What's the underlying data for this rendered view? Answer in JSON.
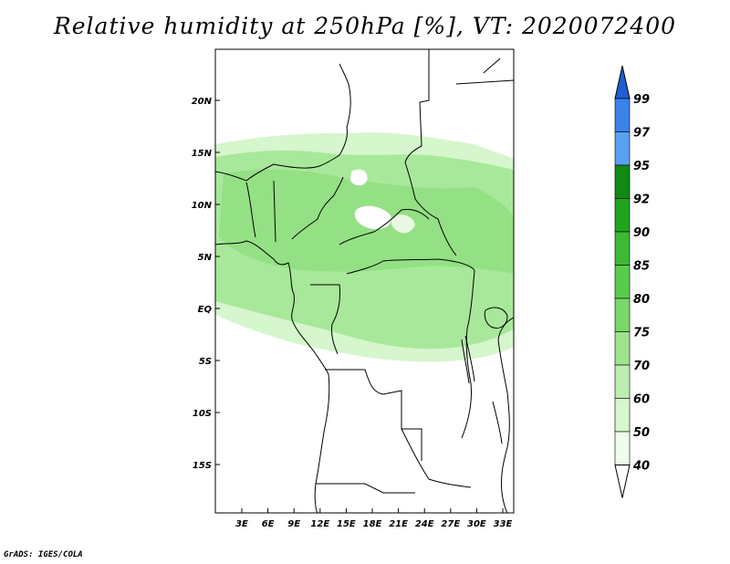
{
  "title": "Relative humidity at 250hPa [%], VT: 2020072400",
  "footer": "GrADS: IGES/COLA",
  "map": {
    "lon_range": [
      0,
      34
    ],
    "lat_range": [
      -20,
      24
    ],
    "lat_ticks": [
      "20N",
      "15N",
      "10N",
      "5N",
      "EQ",
      "5S",
      "10S",
      "15S"
    ],
    "lon_ticks": [
      "3E",
      "6E",
      "9E",
      "12E",
      "15E",
      "18E",
      "21E",
      "24E",
      "27E",
      "30E",
      "33E"
    ],
    "colorbar": {
      "levels": [
        "99",
        "97",
        "95",
        "92",
        "90",
        "85",
        "80",
        "75",
        "70",
        "60",
        "50",
        "40"
      ],
      "colors": [
        "#1e5fd2",
        "#3a82e8",
        "#5aa0f0",
        "#0f8a12",
        "#22a41e",
        "#3cba34",
        "#58cd4c",
        "#7ad86a",
        "#9ee48e",
        "#bbedb0",
        "#d6f6cd",
        "#eefcea"
      ]
    }
  }
}
